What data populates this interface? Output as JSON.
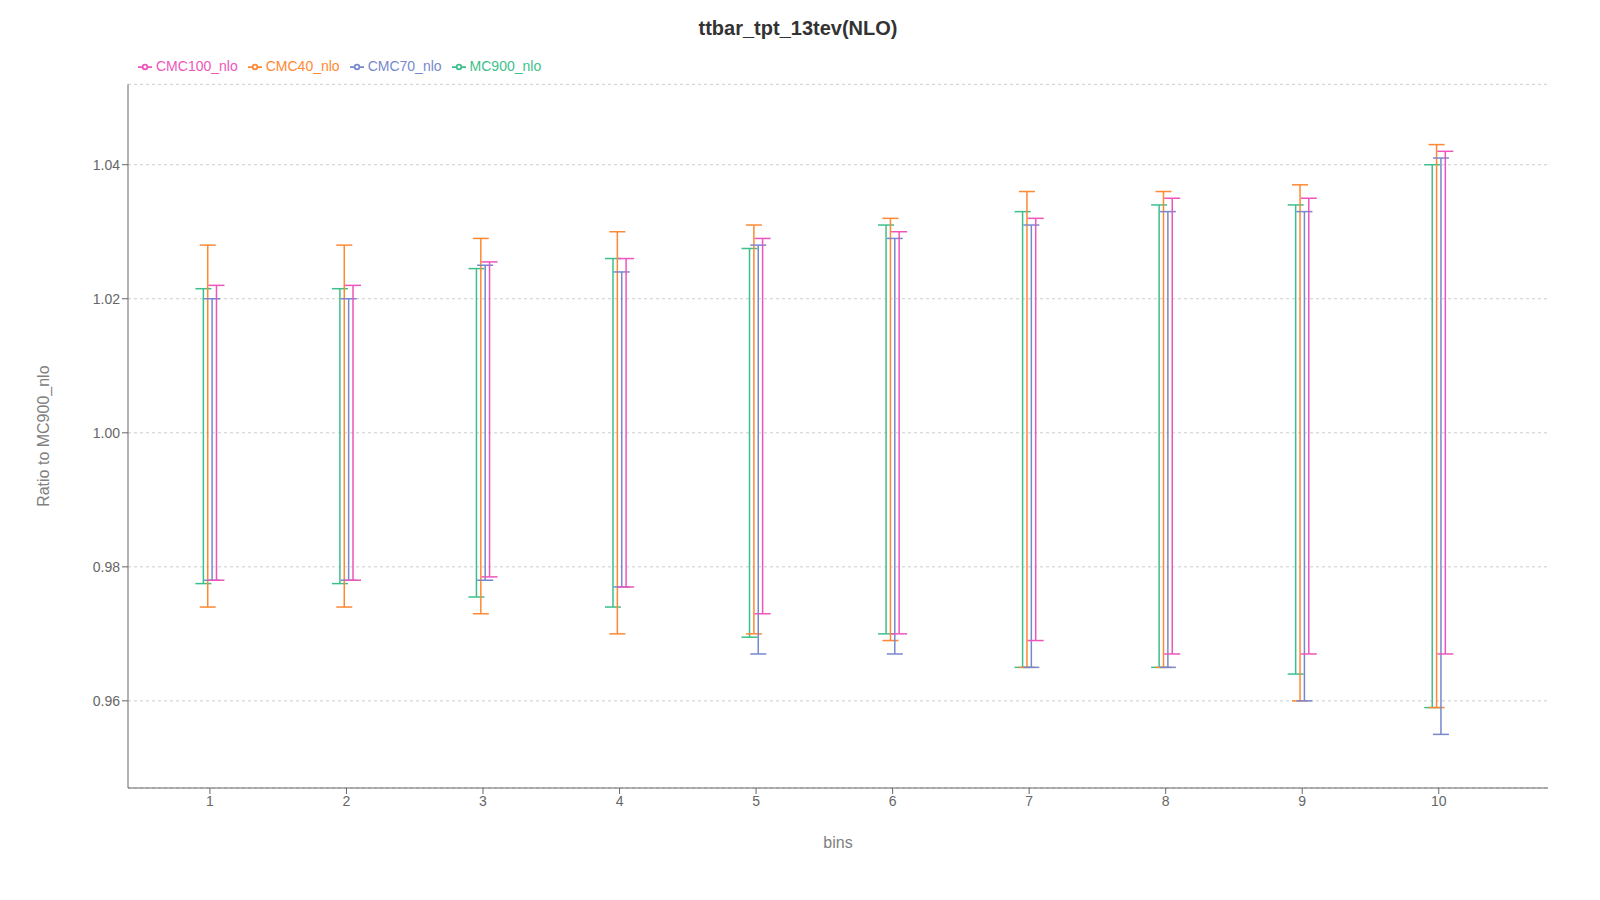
{
  "chart_data": {
    "type": "errorbar",
    "title": "ttbar_tpt_13tev(NLO)",
    "xlabel": "bins",
    "ylabel": "Ratio to MC900_nlo",
    "x": [
      1,
      2,
      3,
      4,
      5,
      6,
      7,
      8,
      9,
      10
    ],
    "xlim": [
      0.4,
      10.8
    ],
    "xticks": [
      1,
      2,
      3,
      4,
      5,
      6,
      7,
      8,
      9,
      10
    ],
    "ylim": [
      0.947,
      1.052
    ],
    "yticks": [
      0.96,
      0.98,
      {
        "value": 1.0,
        "label": "1.00"
      },
      1.02,
      1.04
    ],
    "grid": "y",
    "legend": "upper left",
    "series": [
      {
        "name": "MC900_nlo",
        "color": "#3dbf8b",
        "values": [
          1.0215,
          1.0215,
          1.0245,
          1.026,
          1.0275,
          1.03,
          1.033,
          1.034,
          1.034,
          1.04
        ],
        "yerr_lo": [
          0.044,
          0.044,
          0.049,
          0.052,
          0.058,
          0.06,
          0.068,
          0.069,
          0.07,
          0.081
        ],
        "yerr_hi": [
          0.0,
          0.0,
          0.0,
          0.0,
          0.0,
          0.001,
          0.0,
          0.0,
          0.0,
          0.0
        ]
      },
      {
        "name": "CMC40_nlo",
        "color": "#ff8833",
        "values": [
          1.025,
          1.025,
          1.028,
          1.029,
          1.03,
          1.031,
          1.035,
          1.034,
          1.034,
          1.042
        ],
        "yerr_lo": [
          0.051,
          0.051,
          0.055,
          0.059,
          0.06,
          0.062,
          0.07,
          0.069,
          0.074,
          0.083
        ],
        "yerr_hi": [
          0.003,
          0.003,
          0.001,
          0.001,
          0.001,
          0.001,
          0.001,
          0.002,
          0.003,
          0.001
        ]
      },
      {
        "name": "CMC70_nlo",
        "color": "#7788cc",
        "values": [
          1.02,
          1.02,
          1.022,
          1.023,
          1.026,
          1.028,
          1.031,
          1.032,
          1.028,
          1.038
        ],
        "yerr_lo": [
          0.042,
          0.042,
          0.044,
          0.046,
          0.059,
          0.061,
          0.066,
          0.067,
          0.068,
          0.083
        ],
        "yerr_hi": [
          0.0,
          0.0,
          0.003,
          0.001,
          0.002,
          0.001,
          0.0,
          0.001,
          0.005,
          0.003
        ]
      },
      {
        "name": "CMC100_nlo",
        "color": "#ee55bb",
        "values": [
          1.021,
          1.021,
          1.0245,
          1.025,
          1.028,
          1.029,
          1.031,
          1.034,
          1.034,
          1.041
        ],
        "yerr_lo": [
          0.043,
          0.043,
          0.046,
          0.048,
          0.055,
          0.059,
          0.062,
          0.067,
          0.067,
          0.074
        ],
        "yerr_hi": [
          0.001,
          0.001,
          0.001,
          0.001,
          0.001,
          0.001,
          0.001,
          0.001,
          0.001,
          0.001
        ]
      }
    ]
  }
}
